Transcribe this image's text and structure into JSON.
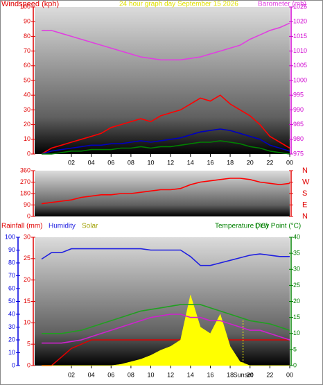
{
  "chart_data": [
    {
      "type": "line",
      "title": "24 hour graph day   September 15 2026",
      "title_color": "#e0e000",
      "ylabel": "Windspeed (kph)",
      "x": [
        -1,
        0,
        1,
        2,
        3,
        4,
        5,
        6,
        7,
        8,
        9,
        10,
        11,
        12,
        13,
        14,
        15,
        16,
        17,
        18,
        19,
        20,
        21,
        22,
        23,
        24
      ],
      "xlim": [
        -1.7,
        24
      ],
      "xticks": [
        {
          "value": 2,
          "label": "02"
        },
        {
          "value": 4,
          "label": "04"
        },
        {
          "value": 6,
          "label": "06"
        },
        {
          "value": 8,
          "label": "08"
        },
        10,
        12,
        14,
        16,
        18,
        20,
        22,
        {
          "value": 24,
          "label": "00"
        }
      ],
      "ylim": [
        0,
        100
      ],
      "yticks": [
        0,
        10,
        20,
        30,
        40,
        50,
        60,
        70,
        80,
        90,
        100
      ],
      "ycolor": "#e00000",
      "y2lim": [
        975,
        1025
      ],
      "y2ticks": [
        975,
        980,
        985,
        990,
        995,
        1000,
        1005,
        1010,
        1015,
        1020,
        1025
      ],
      "y2color": "#d000d0",
      "series": [
        {
          "name": "Barometer (mb)",
          "color": "#e040e0",
          "axis": "y2",
          "values": [
            1017,
            1017,
            1016,
            1015,
            1014,
            1013,
            1012,
            1011,
            1010,
            1009,
            1008,
            1007.5,
            1007,
            1007,
            1007,
            1007.5,
            1008,
            1009,
            1010,
            1011,
            1012,
            1014,
            1015.5,
            1017,
            1018,
            1019.5
          ]
        },
        {
          "color": "#ff0000",
          "axis": "y",
          "values": [
            0,
            4,
            6,
            8,
            10,
            12,
            14,
            18,
            20,
            22,
            24,
            22,
            26,
            28,
            30,
            34,
            38,
            36,
            40,
            34,
            30,
            26,
            20,
            12,
            8,
            4
          ]
        },
        {
          "color": "#0000c0",
          "axis": "y",
          "values": [
            0,
            2,
            3,
            4,
            5,
            6,
            6,
            7,
            7,
            8,
            9,
            8,
            9,
            10,
            11,
            13,
            15,
            16,
            17,
            16,
            14,
            12,
            10,
            6,
            4,
            2
          ]
        },
        {
          "color": "#008000",
          "axis": "y",
          "values": [
            0,
            0,
            1,
            2,
            2,
            3,
            3,
            3,
            4,
            4,
            5,
            4,
            5,
            5,
            6,
            7,
            8,
            8,
            9,
            8,
            7,
            5,
            4,
            2,
            1,
            0
          ]
        }
      ]
    },
    {
      "type": "line",
      "x": [
        -1,
        0,
        1,
        2,
        3,
        4,
        5,
        6,
        7,
        8,
        9,
        10,
        11,
        12,
        13,
        14,
        15,
        16,
        17,
        18,
        19,
        20,
        21,
        22,
        23,
        24
      ],
      "xlim": [
        -1.7,
        24
      ],
      "ylim": [
        0,
        360
      ],
      "yticks": [
        0,
        90,
        180,
        270,
        360
      ],
      "ycolor": "#e00000",
      "y2lim": [
        0,
        360
      ],
      "y2ticks": [
        {
          "value": 0,
          "label": "N"
        },
        {
          "value": 90,
          "label": "E"
        },
        {
          "value": 180,
          "label": "S"
        },
        {
          "value": 270,
          "label": "W"
        },
        {
          "value": 360,
          "label": "N"
        }
      ],
      "y2color": "#e00000",
      "series": [
        {
          "color": "#ff0000",
          "axis": "y",
          "values": [
            100,
            110,
            120,
            130,
            150,
            160,
            170,
            170,
            180,
            180,
            190,
            200,
            210,
            210,
            220,
            250,
            270,
            280,
            290,
            300,
            300,
            290,
            270,
            260,
            250,
            260
          ]
        }
      ]
    },
    {
      "type": "line",
      "x": [
        -1,
        0,
        1,
        2,
        3,
        4,
        5,
        6,
        7,
        8,
        9,
        10,
        11,
        12,
        13,
        14,
        15,
        16,
        17,
        18,
        19,
        20,
        21,
        22,
        23,
        24
      ],
      "xlim": [
        -1.7,
        24
      ],
      "xticks": [
        {
          "value": 2,
          "label": "02"
        },
        {
          "value": 4,
          "label": "04"
        },
        {
          "value": 6,
          "label": "06"
        },
        {
          "value": 8,
          "label": "08"
        },
        10,
        12,
        14,
        16,
        18,
        20,
        22,
        {
          "value": 24,
          "label": "00"
        }
      ],
      "ylim": [
        0,
        100
      ],
      "yticks": [
        0,
        10,
        20,
        30,
        40,
        50,
        60,
        70,
        80,
        90,
        100
      ],
      "ycolor": "#0000e0",
      "y3lim": [
        0,
        30
      ],
      "y3ticks": [
        0,
        5,
        10,
        15,
        20,
        25,
        30
      ],
      "y3color": "#e00000",
      "y2lim": [
        0,
        40
      ],
      "y2ticks": [
        0,
        5,
        10,
        15,
        20,
        25,
        30,
        35,
        40
      ],
      "y2color": "#008000",
      "annotations": [
        {
          "text": "Sunset",
          "x": 19.3
        }
      ],
      "series": [
        {
          "name": "Rainfall (mm)",
          "color": "#e00000",
          "axis": "y3",
          "values": [
            0,
            0,
            2,
            4,
            5,
            6,
            6,
            6,
            6,
            6,
            6,
            6,
            6,
            6,
            6,
            6,
            6,
            6,
            6,
            6,
            6,
            6,
            6,
            6,
            6,
            6
          ]
        },
        {
          "name": "Humidity",
          "color": "#2020e0",
          "axis": "y",
          "values": [
            83,
            88,
            88,
            91,
            91,
            91,
            91,
            91,
            91,
            91,
            91,
            90,
            90,
            90,
            90,
            85,
            78,
            78,
            80,
            82,
            84,
            86,
            87,
            86,
            85,
            85
          ]
        },
        {
          "name": "Solar",
          "color": "#ffff00",
          "text_color": "#a0a000",
          "axis": "y",
          "fill": true,
          "values": [
            0,
            0,
            0,
            0,
            0,
            0,
            0,
            0,
            1,
            3,
            5,
            8,
            12,
            15,
            20,
            55,
            30,
            25,
            40,
            15,
            3,
            0,
            0,
            0,
            0,
            0
          ]
        },
        {
          "name": "Temperature (°C)",
          "color": "#20a020",
          "text_color": "#008000",
          "axis": "y2",
          "values": [
            10,
            10,
            10,
            10.5,
            11,
            12,
            13,
            14,
            15,
            16,
            17,
            17.5,
            18,
            18.5,
            19,
            19,
            19,
            18,
            17,
            16,
            15,
            14,
            13.5,
            13,
            12,
            11
          ]
        },
        {
          "name": "Dew Point (°C)",
          "color": "#d020d0",
          "text_color": "#008000",
          "axis": "y2",
          "values": [
            7,
            7,
            7,
            7.5,
            8,
            9,
            10,
            11,
            12,
            13,
            14,
            15,
            15.5,
            16,
            16,
            15,
            15,
            14,
            14,
            13,
            12,
            11,
            11,
            10,
            9,
            8
          ]
        }
      ]
    }
  ]
}
